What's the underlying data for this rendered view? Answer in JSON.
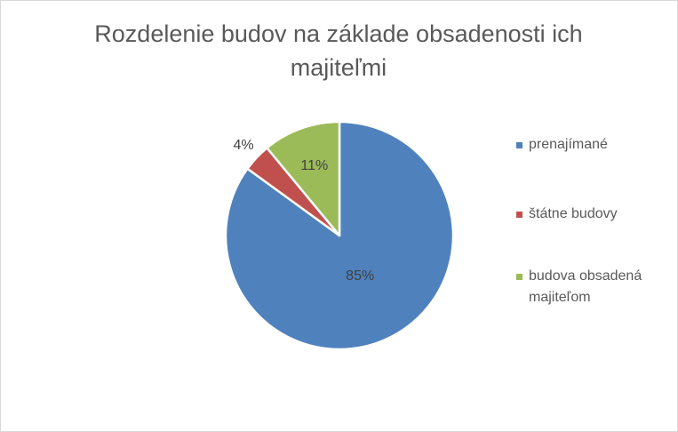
{
  "chart_data": {
    "type": "pie",
    "title": "Rozdelenie budov na základe obsadenosti ich majiteľmi",
    "categories": [
      "prenajímané",
      "štátne budovy",
      "budova obsadená majiteľom"
    ],
    "values": [
      85,
      4,
      11
    ],
    "data_labels": [
      "85%",
      "4%",
      "11%"
    ],
    "colors": [
      "#4f81bd",
      "#c0504d",
      "#9bbb59"
    ],
    "start_angle_deg": 0,
    "direction": "clockwise",
    "legend_position": "right"
  }
}
